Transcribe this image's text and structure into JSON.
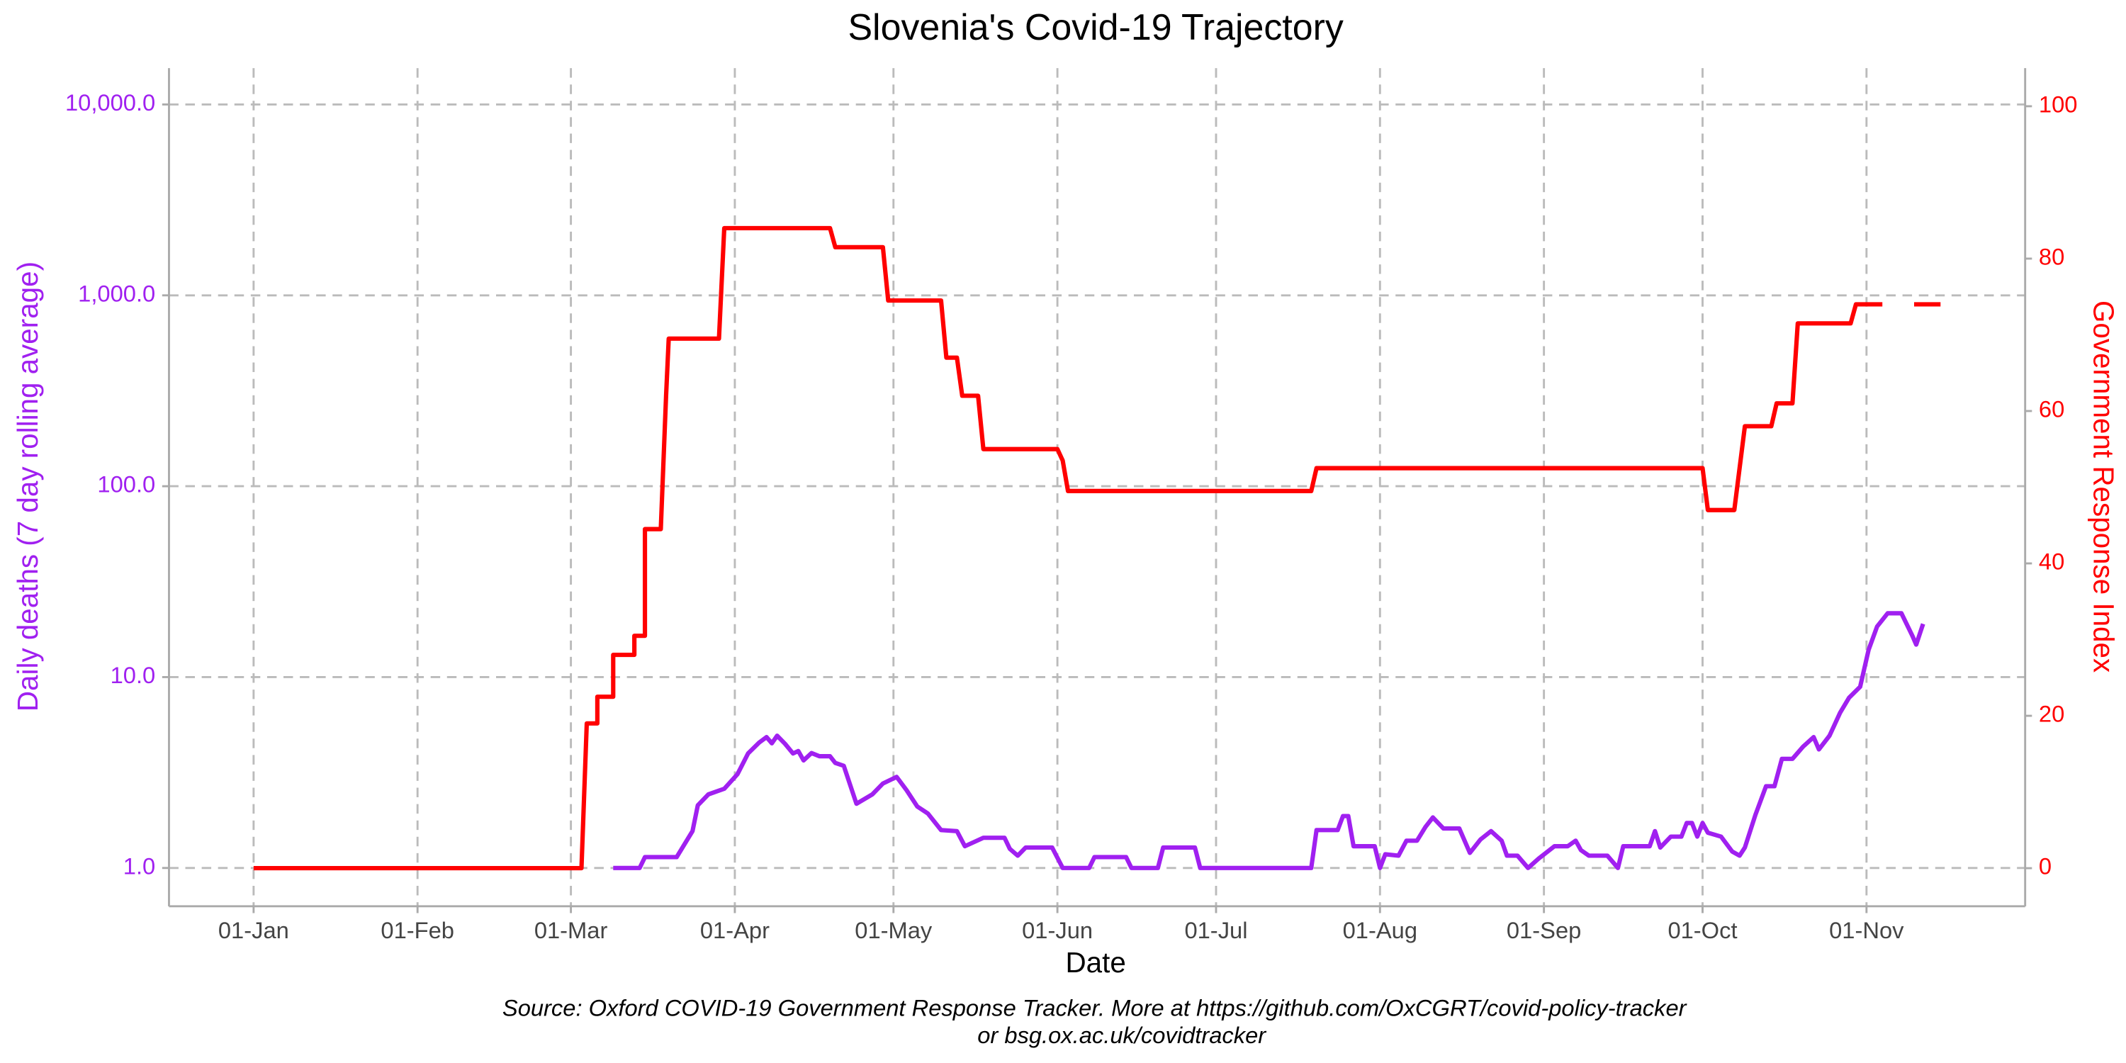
{
  "chart_data": {
    "type": "line",
    "title": "Slovenia's Covid-19 Trajectory",
    "x_label": "Date",
    "y_label": "Daily deaths (7 day rolling average)",
    "y2_label": "Government Response Index",
    "caption": [
      "Source: Oxford COVID-19 Government Response Tracker. More at https://github.com/OxCGRT/covid-policy-tracker",
      "or bsg.ox.ac.uk/covidtracker"
    ],
    "yscale": "log",
    "grid": true,
    "xlim": [
      -16,
      335
    ],
    "xticks": [
      {
        "value": 0,
        "label": "01-Jan"
      },
      {
        "value": 31,
        "label": "01-Feb"
      },
      {
        "value": 60,
        "label": "01-Mar"
      },
      {
        "value": 91,
        "label": "01-Apr"
      },
      {
        "value": 121,
        "label": "01-May"
      },
      {
        "value": 152,
        "label": "01-Jun"
      },
      {
        "value": 182,
        "label": "01-Jul"
      },
      {
        "value": 213,
        "label": "01-Aug"
      },
      {
        "value": 244,
        "label": "01-Sep"
      },
      {
        "value": 274,
        "label": "01-Oct"
      },
      {
        "value": 305,
        "label": "01-Nov"
      }
    ],
    "ylim": [
      0.63,
      15500
    ],
    "yticks": [
      {
        "value": 1,
        "label": "1.0"
      },
      {
        "value": 10,
        "label": "10.0"
      },
      {
        "value": 100,
        "label": "100.0"
      },
      {
        "value": 1000,
        "label": "1,000.0"
      },
      {
        "value": 10000,
        "label": "10,000.0"
      }
    ],
    "y2lim": [
      -5,
      105
    ],
    "y2ticks": [
      0,
      20,
      40,
      60,
      80,
      100
    ],
    "series": [
      {
        "name": "Daily deaths",
        "color": "#a020f0",
        "axis": "y",
        "x": [
          68,
          73,
          74,
          80,
          83,
          84,
          86,
          89,
          91.5,
          93.5,
          95.6,
          97,
          98,
          99,
          100.5,
          102,
          103,
          104,
          105.5,
          107,
          109,
          110,
          111.6,
          114,
          117,
          119,
          121.6,
          123.5,
          125.5,
          127.5,
          130,
          133,
          134.5,
          138,
          142,
          143,
          144.5,
          146,
          151,
          153,
          158,
          159,
          165,
          166,
          171,
          172,
          178,
          179,
          200,
          201,
          205,
          206,
          207,
          208,
          212,
          213,
          214,
          216.5,
          218,
          220,
          221.6,
          223,
          225,
          228,
          230,
          232,
          234,
          236,
          237,
          239,
          241,
          243,
          246,
          248.5,
          250,
          251,
          252.5,
          256,
          258,
          259,
          264,
          265,
          266,
          268,
          270,
          271,
          272,
          273,
          274,
          275,
          277.5,
          279.6,
          281,
          282,
          284,
          286,
          287.6,
          289,
          291,
          293,
          295,
          296,
          298,
          300,
          301.7,
          303.8,
          305.4,
          307,
          309,
          311.6,
          313.7,
          314.4,
          315.7
        ],
        "values": [
          1,
          1,
          1.14,
          1.14,
          1.56,
          2.13,
          2.43,
          2.6,
          3.1,
          3.98,
          4.54,
          4.85,
          4.5,
          4.93,
          4.47,
          3.98,
          4.1,
          3.66,
          4,
          3.85,
          3.85,
          3.55,
          3.43,
          2.17,
          2.43,
          2.77,
          3,
          2.55,
          2.1,
          1.93,
          1.58,
          1.56,
          1.3,
          1.44,
          1.44,
          1.26,
          1.16,
          1.28,
          1.28,
          1,
          1,
          1.14,
          1.14,
          1,
          1,
          1.28,
          1.28,
          1,
          1,
          1.58,
          1.58,
          1.87,
          1.87,
          1.3,
          1.3,
          1,
          1.18,
          1.16,
          1.39,
          1.39,
          1.64,
          1.84,
          1.61,
          1.61,
          1.2,
          1.41,
          1.56,
          1.39,
          1.16,
          1.16,
          1,
          1.12,
          1.3,
          1.3,
          1.39,
          1.24,
          1.16,
          1.16,
          1,
          1.3,
          1.3,
          1.56,
          1.28,
          1.46,
          1.46,
          1.72,
          1.72,
          1.46,
          1.72,
          1.53,
          1.46,
          1.22,
          1.16,
          1.28,
          1.9,
          2.68,
          2.68,
          3.73,
          3.73,
          4.32,
          4.85,
          4.18,
          4.93,
          6.5,
          7.8,
          8.9,
          13.9,
          18.4,
          21.6,
          21.6,
          16.4,
          14.8,
          19
        ]
      },
      {
        "name": "Government Response Index",
        "color": "#ff0000",
        "axis": "y2",
        "x": [
          0,
          62,
          63,
          65,
          65,
          68,
          68,
          72,
          72,
          74,
          74,
          77,
          78,
          78.5,
          88,
          89,
          109,
          110,
          119,
          120,
          130,
          131,
          133,
          134,
          137,
          138,
          152,
          153,
          154,
          200,
          201,
          274,
          275,
          280,
          282,
          287,
          288,
          291,
          292,
          302,
          303,
          308,
          311,
          314,
          319
        ],
        "values": [
          0,
          0,
          19,
          19,
          22.5,
          22.5,
          28,
          28,
          30.5,
          30.5,
          44.5,
          44.5,
          62,
          69.5,
          69.5,
          84,
          84,
          81.5,
          81.5,
          74.5,
          74.5,
          67,
          67,
          62,
          62,
          55,
          55,
          53.5,
          49.5,
          49.5,
          52.5,
          52.5,
          47,
          47,
          58,
          58,
          61,
          61,
          71.5,
          71.5,
          74,
          74,
          null,
          74,
          74
        ]
      }
    ]
  }
}
